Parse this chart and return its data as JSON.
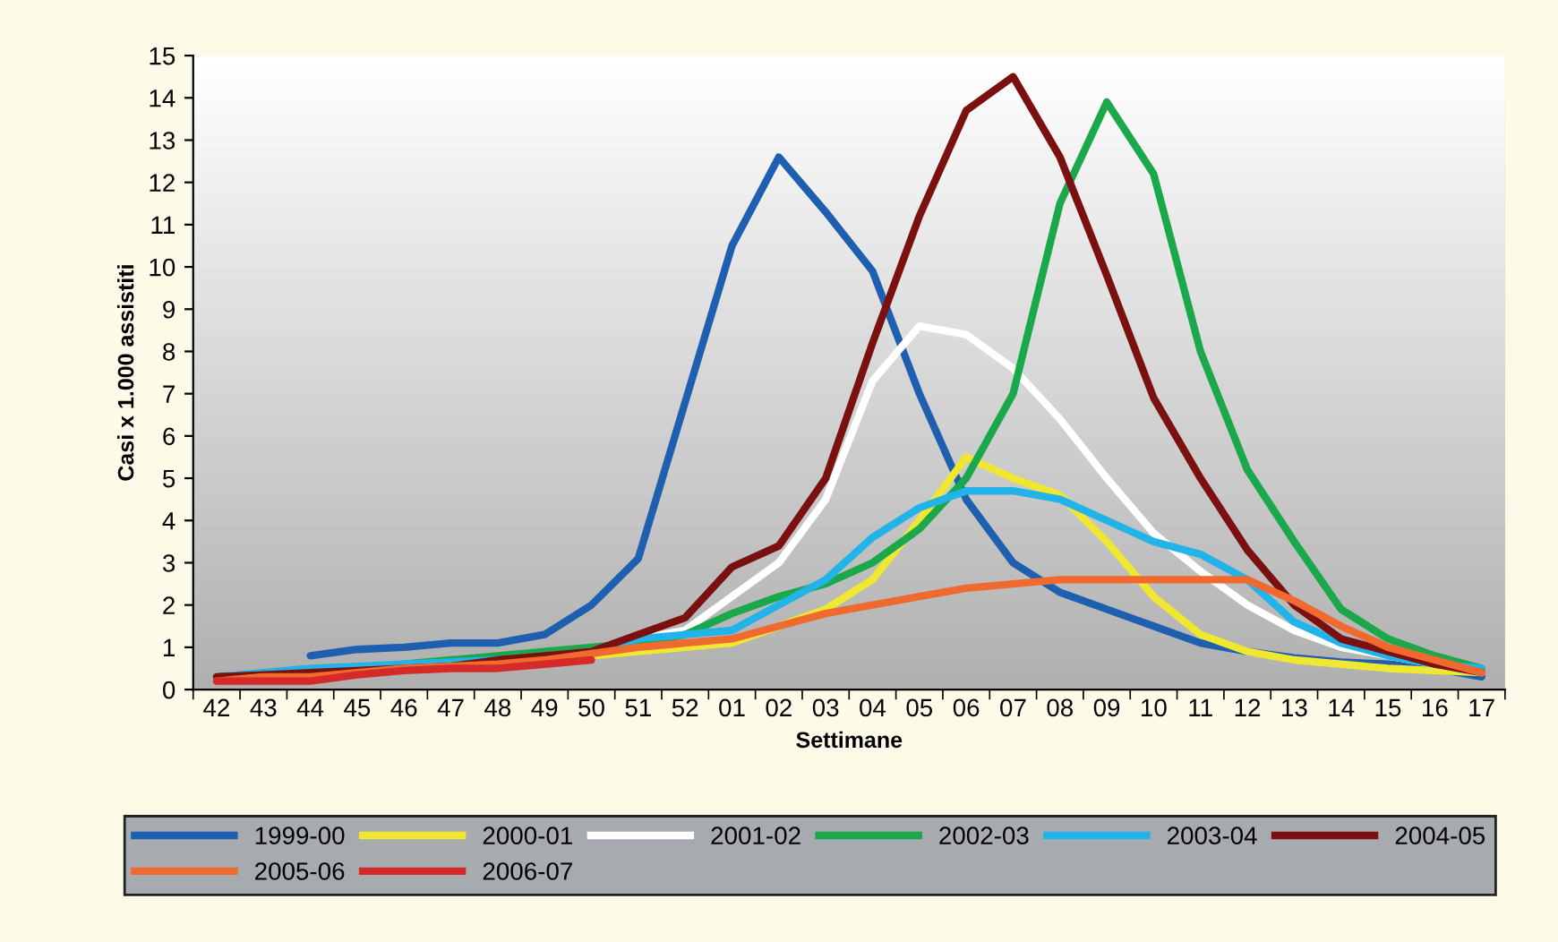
{
  "chart_data": {
    "type": "line",
    "xlabel": "Settimane",
    "ylabel": "Casi x 1.000 assistiti",
    "categories": [
      "42",
      "43",
      "44",
      "45",
      "46",
      "47",
      "48",
      "49",
      "50",
      "51",
      "52",
      "01",
      "02",
      "03",
      "04",
      "05",
      "06",
      "07",
      "08",
      "09",
      "10",
      "11",
      "12",
      "13",
      "14",
      "15",
      "16",
      "17"
    ],
    "ylim": [
      0,
      15
    ],
    "yticks": [
      0,
      1,
      2,
      3,
      4,
      5,
      6,
      7,
      8,
      9,
      10,
      11,
      12,
      13,
      14,
      15
    ],
    "grid": false,
    "legend": "bottom",
    "marker": "none",
    "line_style": "solid",
    "series": [
      {
        "name": "1999-00",
        "color": "#1f5fb0",
        "values": [
          null,
          null,
          0.8,
          0.95,
          1.0,
          1.1,
          1.1,
          1.3,
          2.0,
          3.1,
          6.8,
          10.5,
          12.6,
          11.3,
          9.9,
          7.0,
          4.5,
          3.0,
          2.3,
          1.9,
          1.5,
          1.1,
          0.9,
          0.75,
          0.65,
          0.6,
          0.5,
          0.3
        ]
      },
      {
        "name": "2000-01",
        "color": "#f0e830",
        "values": [
          null,
          null,
          null,
          null,
          null,
          null,
          null,
          0.7,
          0.8,
          0.9,
          1.0,
          1.1,
          1.5,
          1.9,
          2.6,
          4.0,
          5.5,
          5.0,
          4.6,
          3.5,
          2.2,
          1.3,
          0.9,
          0.7,
          0.6,
          0.5,
          0.45,
          0.4
        ]
      },
      {
        "name": "2001-02",
        "color": "#ffffff",
        "values": [
          null,
          null,
          null,
          null,
          null,
          null,
          null,
          null,
          0.9,
          1.2,
          1.4,
          2.2,
          3.0,
          4.5,
          7.3,
          8.6,
          8.4,
          7.6,
          6.4,
          5.0,
          3.7,
          2.8,
          2.0,
          1.4,
          1.0,
          0.8,
          0.6,
          0.4
        ]
      },
      {
        "name": "2002-03",
        "color": "#1aa84a",
        "values": [
          null,
          null,
          null,
          null,
          0.6,
          0.7,
          0.8,
          0.9,
          1.0,
          1.1,
          1.3,
          1.8,
          2.2,
          2.5,
          3.0,
          3.8,
          5.0,
          7.0,
          11.5,
          13.9,
          12.2,
          8.0,
          5.2,
          3.5,
          1.9,
          1.2,
          0.8,
          0.5
        ]
      },
      {
        "name": "2003-04",
        "color": "#22b4e8",
        "values": [
          0.3,
          0.4,
          0.5,
          0.55,
          0.6,
          0.65,
          0.7,
          0.8,
          0.9,
          1.2,
          1.3,
          1.4,
          2.0,
          2.6,
          3.6,
          4.3,
          4.7,
          4.7,
          4.5,
          4.0,
          3.5,
          3.2,
          2.6,
          1.6,
          1.1,
          0.8,
          0.6,
          0.5
        ]
      },
      {
        "name": "2004-05",
        "color": "#7a1010",
        "values": [
          0.3,
          0.35,
          0.4,
          0.45,
          0.5,
          0.55,
          0.7,
          0.8,
          0.9,
          1.3,
          1.7,
          2.9,
          3.4,
          5.0,
          8.2,
          11.2,
          13.7,
          14.5,
          12.6,
          9.8,
          6.9,
          5.0,
          3.3,
          2.0,
          1.2,
          0.9,
          0.6,
          0.4
        ]
      },
      {
        "name": "2005-06",
        "color": "#f06a30",
        "values": [
          0.2,
          0.3,
          0.3,
          0.4,
          0.5,
          0.55,
          0.6,
          0.7,
          0.85,
          1.0,
          1.1,
          1.2,
          1.5,
          1.8,
          2.0,
          2.2,
          2.4,
          2.5,
          2.6,
          2.6,
          2.6,
          2.6,
          2.6,
          2.1,
          1.5,
          1.0,
          0.7,
          0.4
        ]
      },
      {
        "name": "2006-07",
        "color": "#d42a2a",
        "values": [
          0.2,
          0.2,
          0.2,
          0.35,
          0.45,
          0.5,
          0.5,
          0.6,
          0.7,
          null,
          null,
          null,
          null,
          null,
          null,
          null,
          null,
          null,
          null,
          null,
          null,
          null,
          null,
          null,
          null,
          null,
          null,
          null
        ]
      }
    ]
  }
}
